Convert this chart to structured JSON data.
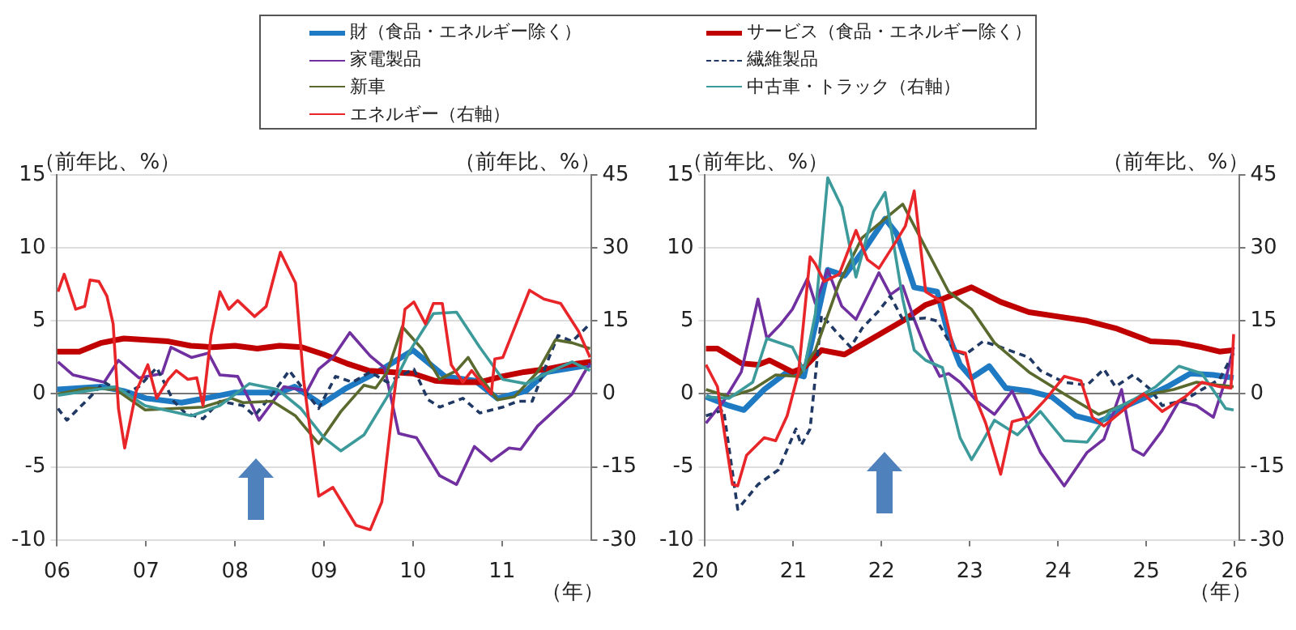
{
  "chart_data": [
    {
      "type": "line",
      "ylabel": "（前年比、%）",
      "y2label": "（前年比、%）",
      "xlabel": "（年）",
      "legend": "top",
      "grid": "y",
      "xlim": [
        2006,
        2012
      ],
      "xticks": [
        {
          "value": 2006,
          "label": "06"
        },
        {
          "value": 2007,
          "label": "07"
        },
        {
          "value": 2008,
          "label": "08"
        },
        {
          "value": 2009,
          "label": "09"
        },
        {
          "value": 2010,
          "label": "10"
        },
        {
          "value": 2011,
          "label": "11"
        }
      ],
      "ylim": [
        -10,
        15
      ],
      "yticks": [
        -10,
        -5,
        0,
        5,
        10,
        15
      ],
      "y2lim": [
        -30,
        45
      ],
      "y2ticks": [
        -30,
        -15,
        0,
        15,
        30,
        45
      ],
      "series": [
        {
          "name": "財（食品・エネルギー除く）",
          "color": "#1f7ac4",
          "x": [
            2006,
            2006.5,
            2006.75,
            2007,
            2007.4,
            2007.75,
            2008,
            2008.5,
            2008.67,
            2008.97,
            2009.25,
            2009.6,
            2010,
            2010.36,
            2010.7,
            2010.95,
            2011.27,
            2011.5,
            2012
          ],
          "values": [
            0.3,
            0.5,
            0.2,
            -0.3,
            -0.6,
            -0.2,
            0.1,
            0.1,
            0.5,
            -0.7,
            0.4,
            1.5,
            3.0,
            1.2,
            0.9,
            -0.3,
            0.2,
            1.5,
            2.0
          ]
        },
        {
          "name": "サービス（食品・エネルギー除く）",
          "color": "#c00000",
          "x": [
            2006,
            2006.25,
            2006.5,
            2006.75,
            2007,
            2007.25,
            2007.5,
            2007.75,
            2008,
            2008.25,
            2008.5,
            2008.75,
            2009,
            2009.25,
            2009.5,
            2009.75,
            2010,
            2010.25,
            2010.5,
            2010.75,
            2011,
            2011.25,
            2011.5,
            2011.75,
            2012
          ],
          "values": [
            2.9,
            2.9,
            3.5,
            3.8,
            3.7,
            3.6,
            3.3,
            3.2,
            3.3,
            3.1,
            3.3,
            3.2,
            2.7,
            2.1,
            1.6,
            1.5,
            1.4,
            0.9,
            0.8,
            0.8,
            1.2,
            1.5,
            1.7,
            2.0,
            2.2
          ]
        },
        {
          "name": "家電製品",
          "color": "#7030a0",
          "x": [
            2006.01,
            2006.18,
            2006.53,
            2006.69,
            2006.92,
            2007.18,
            2007.28,
            2007.51,
            2007.7,
            2007.83,
            2008.03,
            2008.16,
            2008.27,
            2008.55,
            2008.81,
            2008.94,
            2009.1,
            2009.29,
            2009.52,
            2009.68,
            2009.84,
            2010.04,
            2010.3,
            2010.49,
            2010.69,
            2010.88,
            2011.08,
            2011.21,
            2011.4,
            2011.79,
            2011.92,
            2011.99
          ],
          "values": [
            2.2,
            1.3,
            0.8,
            2.3,
            1.1,
            1.4,
            3.2,
            2.5,
            2.8,
            1.3,
            1.2,
            -0.4,
            -1.8,
            0.5,
            0.2,
            1.7,
            2.5,
            4.2,
            2.6,
            1.8,
            -2.7,
            -3.0,
            -5.6,
            -6.2,
            -3.6,
            -4.6,
            -3.7,
            -3.8,
            -2.2,
            0,
            1.4,
            2.1
          ]
        },
        {
          "name": "繊維製品",
          "color": "#1f3864",
          "line_style": "dashed",
          "x": [
            2006.01,
            2006.11,
            2006.34,
            2006.53,
            2006.76,
            2006.92,
            2007.12,
            2007.31,
            2007.44,
            2007.64,
            2007.83,
            2008.09,
            2008.22,
            2008.42,
            2008.61,
            2008.77,
            2008.94,
            2009.13,
            2009.32,
            2009.52,
            2009.71,
            2010.01,
            2010.17,
            2010.3,
            2010.56,
            2010.75,
            2011.01,
            2011.18,
            2011.34,
            2011.53,
            2011.63,
            2011.79,
            2011.99
          ],
          "values": [
            -1.0,
            -1.8,
            -0.4,
            0.8,
            0,
            0.5,
            1.8,
            -0.5,
            -1.3,
            -1.7,
            -0.5,
            -0.8,
            -1.5,
            0,
            1.6,
            0.3,
            -1.0,
            1.2,
            0.8,
            1.5,
            0.8,
            1.7,
            -0.4,
            -0.9,
            -0.3,
            -1.3,
            -0.9,
            -0.5,
            -0.5,
            2.5,
            4.0,
            3.6,
            4.8
          ]
        },
        {
          "name": "新車",
          "color": "#5a6a2e",
          "x": [
            2006.01,
            2006.34,
            2006.66,
            2006.99,
            2007.31,
            2007.64,
            2007.96,
            2008.09,
            2008.42,
            2008.68,
            2008.94,
            2009.19,
            2009.45,
            2009.58,
            2009.71,
            2009.88,
            2010.1,
            2010.3,
            2010.49,
            2010.62,
            2010.75,
            2010.95,
            2011.14,
            2011.4,
            2011.6,
            2011.79,
            2011.99
          ],
          "values": [
            0,
            0.4,
            0.3,
            -1.1,
            -1.0,
            -0.9,
            -0.3,
            -0.6,
            -0.5,
            -1.5,
            -3.4,
            -1.2,
            0.6,
            0.4,
            1.5,
            4.6,
            3.1,
            1.0,
            1.6,
            2.5,
            1.2,
            -0.4,
            -0.2,
            1.5,
            3.7,
            3.5,
            3.1
          ]
        },
        {
          "name": "中古車・トラック（右軸）",
          "color": "#3d9a9b",
          "axis": "y2",
          "x": [
            2006.01,
            2006.66,
            2006.99,
            2007.51,
            2007.83,
            2008.16,
            2008.48,
            2008.74,
            2009,
            2009.19,
            2009.45,
            2009.71,
            2009.97,
            2010.23,
            2010.49,
            2010.75,
            2011.01,
            2011.27,
            2011.53,
            2011.79,
            2011.99
          ],
          "values": [
            -0.3,
            1.5,
            -2.4,
            -4.5,
            -2.4,
            2.1,
            0.9,
            -3,
            -9,
            -11.7,
            -8.4,
            -0.6,
            9,
            16.5,
            16.8,
            9.6,
            3,
            2.1,
            4.5,
            6.6,
            4.8
          ]
        },
        {
          "name": "エネルギー（右軸）",
          "color": "#e8262a",
          "axis": "y2",
          "x": [
            2006.01,
            2006.08,
            2006.21,
            2006.31,
            2006.37,
            2006.47,
            2006.56,
            2006.63,
            2006.69,
            2006.76,
            2006.89,
            2007.02,
            2007.12,
            2007.25,
            2007.34,
            2007.47,
            2007.57,
            2007.64,
            2007.73,
            2007.83,
            2007.93,
            2008.03,
            2008.22,
            2008.35,
            2008.51,
            2008.68,
            2008.77,
            2008.94,
            2009.1,
            2009.36,
            2009.52,
            2009.65,
            2009.78,
            2009.91,
            2010.01,
            2010.14,
            2010.23,
            2010.33,
            2010.43,
            2010.56,
            2010.66,
            2010.75,
            2010.88,
            2010.92,
            2011.01,
            2011.31,
            2011.47,
            2011.66,
            2011.86,
            2011.99
          ],
          "values": [
            21,
            24.6,
            17.4,
            18,
            23.4,
            23.1,
            20.1,
            14.4,
            -3,
            -11.1,
            0.6,
            6,
            -0.9,
            3,
            4.8,
            3,
            3.3,
            -2.4,
            12,
            21,
            17.4,
            19.2,
            15.9,
            18,
            29.1,
            22.8,
            3,
            -21,
            -19.2,
            -27,
            -27.9,
            -22.2,
            -1.5,
            17.4,
            18.9,
            14.4,
            18.6,
            18.6,
            6,
            2.4,
            4.8,
            2.7,
            0,
            7.2,
            7.5,
            21.3,
            19.5,
            18.6,
            12.9,
            7.5
          ]
        }
      ]
    },
    {
      "type": "line",
      "ylabel": "（前年比、%）",
      "y2label": "（前年比、%）",
      "xlabel": "（年）",
      "legend": "top",
      "grid": "y",
      "xlim": [
        2020,
        2026.05
      ],
      "xticks": [
        {
          "value": 2020,
          "label": "20"
        },
        {
          "value": 2021,
          "label": "21"
        },
        {
          "value": 2022,
          "label": "22"
        },
        {
          "value": 2023,
          "label": "23"
        },
        {
          "value": 2024,
          "label": "24"
        },
        {
          "value": 2025,
          "label": "25"
        },
        {
          "value": 2026,
          "label": "26"
        }
      ],
      "ylim": [
        -10,
        15
      ],
      "yticks": [
        -10,
        -5,
        0,
        5,
        10,
        15
      ],
      "y2lim": [
        -30,
        45
      ],
      "y2ticks": [
        -30,
        -15,
        0,
        15,
        30,
        45
      ],
      "series": [
        {
          "name": "財（食品・エネルギー除く）",
          "color": "#1f7ac4",
          "x": [
            2020.01,
            2020.27,
            2020.44,
            2020.67,
            2020.93,
            2021.06,
            2021.12,
            2021.39,
            2021.58,
            2021.84,
            2022.04,
            2022.17,
            2022.37,
            2022.63,
            2022.76,
            2022.89,
            2023.02,
            2023.22,
            2023.41,
            2023.67,
            2023.93,
            2024.2,
            2024.46,
            2024.62,
            2024.78,
            2024.97,
            2025.24,
            2025.5,
            2025.76,
            2025.99
          ],
          "values": [
            -0.2,
            -0.8,
            -1.1,
            0.3,
            1.5,
            1.3,
            1.2,
            8.5,
            8.1,
            10.2,
            12.0,
            11.0,
            7.3,
            7.0,
            4.0,
            2.0,
            1.1,
            1.9,
            0.4,
            0.2,
            -0.2,
            -1.5,
            -1.9,
            -1.5,
            -0.8,
            -0.3,
            0.5,
            1.4,
            1.3,
            1.1
          ]
        },
        {
          "name": "サービス（食品・エネルギー除く）",
          "color": "#c00000",
          "x": [
            2020.01,
            2020.14,
            2020.41,
            2020.6,
            2020.73,
            2020.99,
            2021.12,
            2021.32,
            2021.58,
            2021.84,
            2022.24,
            2022.5,
            2022.69,
            2023.02,
            2023.35,
            2023.67,
            2024,
            2024.33,
            2024.65,
            2025.05,
            2025.37,
            2025.63,
            2025.83,
            2025.99
          ],
          "values": [
            3.1,
            3.1,
            2.1,
            2.0,
            2.3,
            1.5,
            1.8,
            3.0,
            2.7,
            3.6,
            5.0,
            6.1,
            6.5,
            7.3,
            6.3,
            5.6,
            5.3,
            5.0,
            4.5,
            3.6,
            3.5,
            3.2,
            2.9,
            3.0
          ]
        },
        {
          "name": "家電製品",
          "color": "#7030a0",
          "x": [
            2020.01,
            2020.21,
            2020.41,
            2020.6,
            2020.7,
            2020.86,
            2020.99,
            2021.16,
            2021.25,
            2021.39,
            2021.55,
            2021.71,
            2021.97,
            2022.1,
            2022.24,
            2022.37,
            2022.5,
            2022.66,
            2022.76,
            2022.89,
            2023.08,
            2023.28,
            2023.48,
            2023.67,
            2023.8,
            2024.07,
            2024.33,
            2024.52,
            2024.72,
            2024.85,
            2024.97,
            2025.18,
            2025.37,
            2025.57,
            2025.76,
            2025.9,
            2025.99
          ],
          "values": [
            -2.0,
            -0.5,
            1.5,
            6.5,
            3.8,
            4.8,
            5.8,
            7.9,
            6.2,
            8.5,
            6.0,
            5.1,
            8.3,
            6.8,
            7.4,
            5.1,
            3.1,
            1.2,
            1.4,
            0.8,
            -0.5,
            -1.4,
            0.2,
            -2.3,
            -4.0,
            -6.3,
            -4.0,
            -3.1,
            0.3,
            -3.8,
            -4.2,
            -2.5,
            -0.5,
            -0.8,
            -1.6,
            1.0,
            3.2
          ]
        },
        {
          "name": "繊維製品",
          "color": "#1f3864",
          "line_style": "dashed",
          "x": [
            2020.01,
            2020.21,
            2020.37,
            2020.6,
            2020.83,
            2021.03,
            2021.09,
            2021.19,
            2021.32,
            2021.48,
            2021.65,
            2021.78,
            2021.97,
            2022.1,
            2022.24,
            2022.5,
            2022.63,
            2022.82,
            2022.95,
            2023.15,
            2023.35,
            2023.67,
            2023.8,
            2024.07,
            2024.33,
            2024.52,
            2024.65,
            2024.85,
            2025.05,
            2025.18,
            2025.44,
            2025.63,
            2025.83,
            2025.99
          ],
          "values": [
            -1.5,
            -1.1,
            -7.9,
            -6.2,
            -5.2,
            -2.4,
            -3.5,
            -2.4,
            5.4,
            4.3,
            3.2,
            4.5,
            5.7,
            6.7,
            5.1,
            5.2,
            5.0,
            3.0,
            2.7,
            3.6,
            3.2,
            2.5,
            1.6,
            0.8,
            0.6,
            1.7,
            0.5,
            1.3,
            0.3,
            -0.8,
            -0.4,
            0.3,
            1.0,
            2.8
          ]
        },
        {
          "name": "新車",
          "color": "#5a6a2e",
          "x": [
            2020.01,
            2020.27,
            2020.54,
            2020.8,
            2021.06,
            2021.25,
            2021.52,
            2021.78,
            2022.04,
            2022.24,
            2022.5,
            2022.76,
            2023.02,
            2023.28,
            2023.67,
            2024.07,
            2024.46,
            2024.72,
            2024.97,
            2025.31,
            2025.57,
            2025.83,
            2025.99
          ],
          "values": [
            0.3,
            -0.2,
            0.3,
            1.3,
            1.2,
            3.0,
            7.6,
            10.7,
            12.0,
            13.0,
            10.0,
            7.0,
            5.8,
            3.5,
            1.5,
            0.0,
            -1.4,
            -0.8,
            -0.1,
            0.3,
            0.8,
            0.6,
            0.5
          ]
        },
        {
          "name": "中古車・トラック（右軸）",
          "color": "#3d9a9b",
          "axis": "y2",
          "x": [
            2020.01,
            2020.27,
            2020.54,
            2020.7,
            2020.99,
            2021.12,
            2021.25,
            2021.39,
            2021.55,
            2021.71,
            2021.91,
            2022.04,
            2022.24,
            2022.37,
            2022.5,
            2022.69,
            2022.89,
            2023.02,
            2023.15,
            2023.28,
            2023.54,
            2023.8,
            2024.07,
            2024.33,
            2024.59,
            2024.85,
            2025.11,
            2025.37,
            2025.63,
            2025.9,
            2025.99
          ],
          "values": [
            -0.6,
            -0.9,
            2.4,
            11.4,
            9.6,
            4.8,
            16.5,
            44.4,
            38.4,
            24,
            37.5,
            41.4,
            19.5,
            9,
            6.9,
            5.4,
            -9,
            -13.5,
            -9.6,
            -5.4,
            -8.4,
            -3.6,
            -9.6,
            -9.9,
            -3.6,
            -1.2,
            1.5,
            5.7,
            4.2,
            -3,
            -3.3
          ]
        },
        {
          "name": "エネルギー（右軸）",
          "color": "#e8262a",
          "axis": "y2",
          "x": [
            2020.01,
            2020.14,
            2020.24,
            2020.31,
            2020.37,
            2020.47,
            2020.67,
            2020.8,
            2020.93,
            2021.06,
            2021.19,
            2021.25,
            2021.35,
            2021.52,
            2021.71,
            2021.84,
            2021.97,
            2022.17,
            2022.27,
            2022.37,
            2022.5,
            2022.69,
            2022.82,
            2022.95,
            2023.08,
            2023.18,
            2023.35,
            2023.48,
            2023.67,
            2023.87,
            2024.07,
            2024.26,
            2024.39,
            2024.52,
            2024.72,
            2024.97,
            2025.18,
            2025.44,
            2025.63,
            2025.83,
            2025.96,
            2025.99
          ],
          "values": [
            6,
            1.5,
            -10.5,
            -18.6,
            -18.9,
            -12.6,
            -9,
            -9.6,
            -4.5,
            4.5,
            28.2,
            26.7,
            23.1,
            24.6,
            33.6,
            27.6,
            25.8,
            31.5,
            34.5,
            41.7,
            21,
            18.9,
            9,
            8.4,
            -1.5,
            -6,
            -16.5,
            -5.7,
            -4.8,
            -0.9,
            3.6,
            2.7,
            -4.8,
            -6.6,
            -3.6,
            0,
            -3.6,
            -0.6,
            2.4,
            1.5,
            1.2,
            12.3
          ]
        }
      ]
    }
  ]
}
